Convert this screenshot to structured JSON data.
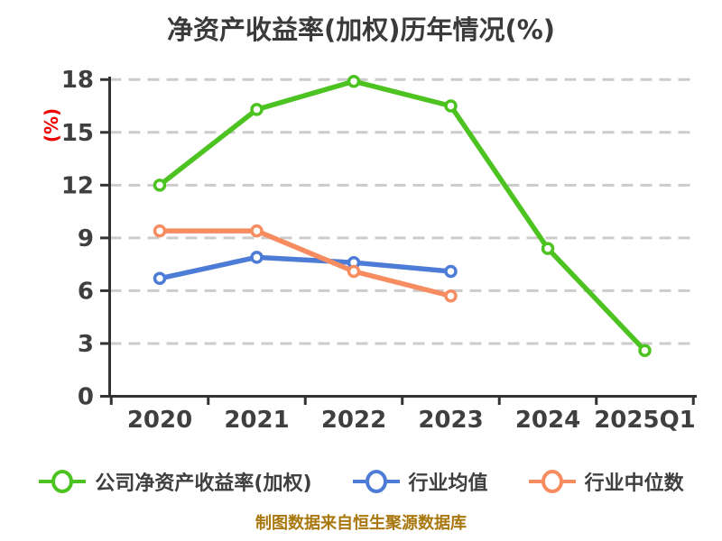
{
  "title": "净资产收益率(加权)历年情况(%)",
  "footer": "制图数据来自恒生聚源数据库",
  "colors": {
    "company_series": "#4cc320",
    "industry_mean_series": "#4d7cd6",
    "industry_median_series": "#f68c60",
    "grid": "#cccccc",
    "axis": "#333333",
    "tick_label": "#3f3f3f",
    "title_text": "#3a3a3a",
    "y_axis_label_text": "#ee0000",
    "footer_text": "#a8770e",
    "marker_fill": "#ffffff",
    "background": "#ffffff"
  },
  "chart_data": {
    "type": "line",
    "title": "净资产收益率(加权)历年情况(%)",
    "xlabel": "",
    "ylabel": "(%)",
    "categories": [
      "2020",
      "2021",
      "2022",
      "2023",
      "2024",
      "2025Q1"
    ],
    "series": [
      {
        "name": "公司净资产收益率(加权)",
        "color": "#4cc320",
        "values": [
          12.0,
          16.3,
          17.9,
          16.5,
          8.4,
          2.6
        ]
      },
      {
        "name": "行业均值",
        "color": "#4d7cd6",
        "values": [
          6.7,
          7.9,
          7.6,
          7.1,
          null,
          null
        ]
      },
      {
        "name": "行业中位数",
        "color": "#f68c60",
        "values": [
          9.4,
          9.4,
          7.1,
          5.7,
          null,
          null
        ]
      }
    ],
    "ylim": [
      0,
      18
    ],
    "yticks": [
      0,
      3,
      6,
      9,
      12,
      15,
      18
    ],
    "grid": "horizontal-dashed",
    "legend_position": "bottom",
    "marker": "circle-white-fill",
    "footer": "制图数据来自恒生聚源数据库"
  }
}
